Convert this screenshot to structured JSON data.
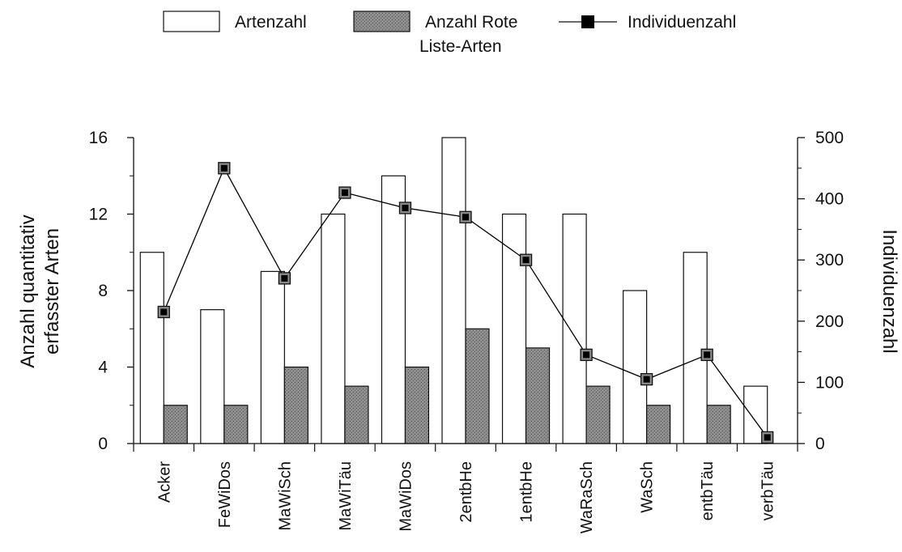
{
  "chart_data": {
    "type": "bar",
    "categories": [
      "Acker",
      "FeWiDos",
      "MaWiSch",
      "MaWiTäu",
      "MaWiDos",
      "2entbHe",
      "1entbHe",
      "WaRaSch",
      "WaSch",
      "entbTäu",
      "verbTäu"
    ],
    "series": [
      {
        "name": "Artenzahl",
        "type": "bar",
        "axis": "left",
        "values": [
          10,
          7,
          9,
          12,
          14,
          16,
          12,
          12,
          8,
          10,
          3
        ],
        "color": "#ffffff"
      },
      {
        "name": "Anzahl Rote Liste-Arten",
        "type": "bar",
        "axis": "left",
        "values": [
          2,
          2,
          4,
          3,
          4,
          6,
          5,
          3,
          2,
          2,
          0
        ],
        "color": "#8c8c8c"
      },
      {
        "name": "Individuenzahl",
        "type": "line",
        "axis": "right",
        "values": [
          215,
          450,
          270,
          410,
          385,
          370,
          300,
          145,
          105,
          145,
          10
        ],
        "color": "#000000"
      }
    ],
    "legend": {
      "position": "top",
      "items": [
        {
          "line1": "Artenzahl",
          "line2": ""
        },
        {
          "line1": "Anzahl Rote",
          "line2": "Liste-Arten"
        },
        {
          "line1": "Individuenzahl",
          "line2": ""
        }
      ]
    },
    "ylabel_left": {
      "line1": "Anzahl quantitativ",
      "line2": "erfasster Arten"
    },
    "ylabel_right": "Individuenzahl",
    "ylim_left": [
      0,
      16
    ],
    "ylim_right": [
      0,
      500
    ],
    "yticks_left": [
      0,
      4,
      8,
      12,
      16
    ],
    "yticks_right": [
      0,
      100,
      200,
      300,
      400,
      500
    ],
    "grid": false
  }
}
